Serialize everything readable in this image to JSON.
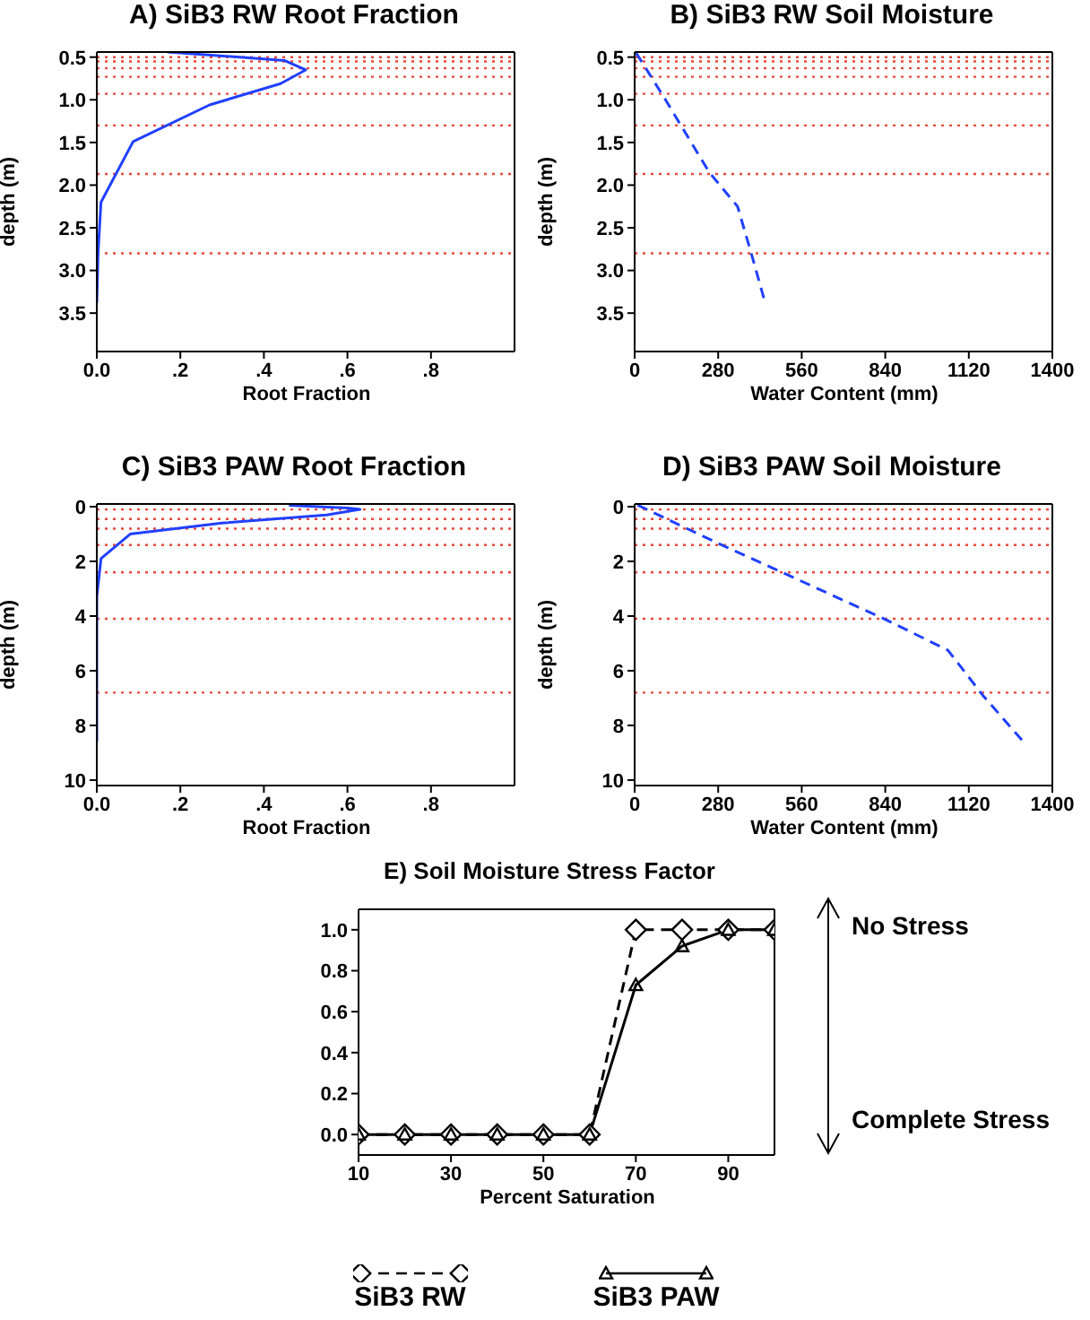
{
  "chart_data": [
    {
      "type": "line",
      "title": "A) SiB3 RW Root Fraction",
      "xlabel": "Root Fraction",
      "ylabel": "depth (m)",
      "xlim": [
        0,
        1
      ],
      "xticks": [
        {
          "value": 0,
          "label": "0.0"
        },
        {
          "value": 0.2,
          "label": ".2"
        },
        {
          "value": 0.4,
          "label": ".4"
        },
        {
          "value": 0.6,
          "label": ".6"
        },
        {
          "value": 0.8,
          "label": ".8"
        }
      ],
      "ylim": [
        3.95,
        0.44
      ],
      "yticks": [
        0.5,
        {
          "value": 1,
          "label": "1.0"
        },
        1.5,
        {
          "value": 2,
          "label": "2.0"
        },
        2.5,
        {
          "value": 3,
          "label": "3.0"
        },
        3.5
      ],
      "grid": false,
      "legend": false,
      "marker": "none",
      "line_style": "solid",
      "series": [
        {
          "color": "#2040ff",
          "x": [
            0.17,
            0.45,
            0.5,
            0.44,
            0.27,
            0.087,
            0.01,
            0.003,
            0
          ],
          "values": [
            0.44,
            0.54,
            0.65,
            0.81,
            1.06,
            1.49,
            2.2,
            2.8,
            3.38
          ]
        }
      ],
      "ref_lines": [
        {
          "axis": "y",
          "value": 0.5,
          "color": "#e8483c",
          "line_style": "dotted"
        },
        {
          "axis": "y",
          "value": 0.55,
          "color": "#e8483c",
          "line_style": "dotted"
        },
        {
          "axis": "y",
          "value": 0.63,
          "color": "#e8483c",
          "line_style": "dotted"
        },
        {
          "axis": "y",
          "value": 0.73,
          "color": "#e8483c",
          "line_style": "dotted"
        },
        {
          "axis": "y",
          "value": 0.93,
          "color": "#e8483c",
          "line_style": "dotted"
        },
        {
          "axis": "y",
          "value": 1.3,
          "color": "#e8483c",
          "line_style": "dotted"
        },
        {
          "axis": "y",
          "value": 1.87,
          "color": "#e8483c",
          "line_style": "dotted"
        },
        {
          "axis": "y",
          "value": 2.8,
          "color": "#e8483c",
          "line_style": "dotted"
        }
      ]
    },
    {
      "type": "line",
      "title": "B) SiB3 RW Soil Moisture",
      "xlabel": "Water Content (mm)",
      "ylabel": "depth (m)",
      "xlim": [
        0,
        1400
      ],
      "xticks": [
        0,
        280,
        560,
        840,
        1120,
        1400
      ],
      "ylim": [
        3.95,
        0.44
      ],
      "yticks": [
        0.5,
        {
          "value": 1,
          "label": "1.0"
        },
        1.5,
        {
          "value": 2,
          "label": "2.0"
        },
        2.5,
        {
          "value": 3,
          "label": "3.0"
        },
        3.5
      ],
      "grid": false,
      "legend": false,
      "marker": "none",
      "line_style": "dashed",
      "series": [
        {
          "color": "#2040ff",
          "x": [
            5,
            100,
            250,
            345,
            395,
            435
          ],
          "values": [
            0.45,
            0.98,
            1.85,
            2.25,
            2.85,
            3.35
          ]
        }
      ],
      "ref_lines": [
        {
          "axis": "y",
          "value": 0.5,
          "color": "#e8483c",
          "line_style": "dotted"
        },
        {
          "axis": "y",
          "value": 0.55,
          "color": "#e8483c",
          "line_style": "dotted"
        },
        {
          "axis": "y",
          "value": 0.63,
          "color": "#e8483c",
          "line_style": "dotted"
        },
        {
          "axis": "y",
          "value": 0.73,
          "color": "#e8483c",
          "line_style": "dotted"
        },
        {
          "axis": "y",
          "value": 0.93,
          "color": "#e8483c",
          "line_style": "dotted"
        },
        {
          "axis": "y",
          "value": 1.3,
          "color": "#e8483c",
          "line_style": "dotted"
        },
        {
          "axis": "y",
          "value": 1.87,
          "color": "#e8483c",
          "line_style": "dotted"
        },
        {
          "axis": "y",
          "value": 2.8,
          "color": "#e8483c",
          "line_style": "dotted"
        }
      ]
    },
    {
      "type": "line",
      "title": "C) SiB3 PAW Root Fraction",
      "xlabel": "Root Fraction",
      "ylabel": "depth (m)",
      "xlim": [
        0,
        1
      ],
      "xticks": [
        {
          "value": 0,
          "label": "0.0"
        },
        {
          "value": 0.2,
          "label": ".2"
        },
        {
          "value": 0.4,
          "label": ".4"
        },
        {
          "value": 0.6,
          "label": ".6"
        },
        {
          "value": 0.8,
          "label": ".8"
        }
      ],
      "ylim": [
        10.2,
        -0.1
      ],
      "yticks": [
        0,
        2,
        4,
        6,
        8,
        10
      ],
      "grid": false,
      "legend": false,
      "marker": "none",
      "line_style": "solid",
      "series": [
        {
          "color": "#2040ff",
          "x": [
            0.46,
            0.6,
            0.63,
            0.55,
            0.3,
            0.08,
            0.01,
            0,
            0
          ],
          "values": [
            -0.05,
            0.05,
            0.1,
            0.3,
            0.6,
            1,
            1.9,
            3.3,
            8.6
          ]
        }
      ],
      "ref_lines": [
        {
          "axis": "y",
          "value": 0.1,
          "color": "#e8483c",
          "line_style": "dotted"
        },
        {
          "axis": "y",
          "value": 0.45,
          "color": "#e8483c",
          "line_style": "dotted"
        },
        {
          "axis": "y",
          "value": 0.8,
          "color": "#e8483c",
          "line_style": "dotted"
        },
        {
          "axis": "y",
          "value": 1.4,
          "color": "#e8483c",
          "line_style": "dotted"
        },
        {
          "axis": "y",
          "value": 2.4,
          "color": "#e8483c",
          "line_style": "dotted"
        },
        {
          "axis": "y",
          "value": 4.1,
          "color": "#e8483c",
          "line_style": "dotted"
        },
        {
          "axis": "y",
          "value": 6.8,
          "color": "#e8483c",
          "line_style": "dotted"
        }
      ]
    },
    {
      "type": "line",
      "title": "D) SiB3 PAW Soil Moisture",
      "xlabel": "Water Content (mm)",
      "ylabel": "depth (m)",
      "xlim": [
        0,
        1400
      ],
      "xticks": [
        0,
        280,
        560,
        840,
        1120,
        1400
      ],
      "ylim": [
        10.2,
        -0.1
      ],
      "yticks": [
        0,
        2,
        4,
        6,
        8,
        10
      ],
      "grid": false,
      "legend": false,
      "marker": "none",
      "line_style": "dashed",
      "series": [
        {
          "color": "#2040ff",
          "x": [
            10,
            272,
            836,
            1050,
            1167,
            1303
          ],
          "values": [
            -0.06,
            1.3,
            4.1,
            5.25,
            6.9,
            8.6
          ]
        }
      ],
      "ref_lines": [
        {
          "axis": "y",
          "value": 0.1,
          "color": "#e8483c",
          "line_style": "dotted"
        },
        {
          "axis": "y",
          "value": 0.45,
          "color": "#e8483c",
          "line_style": "dotted"
        },
        {
          "axis": "y",
          "value": 0.8,
          "color": "#e8483c",
          "line_style": "dotted"
        },
        {
          "axis": "y",
          "value": 1.4,
          "color": "#e8483c",
          "line_style": "dotted"
        },
        {
          "axis": "y",
          "value": 2.4,
          "color": "#e8483c",
          "line_style": "dotted"
        },
        {
          "axis": "y",
          "value": 4.1,
          "color": "#e8483c",
          "line_style": "dotted"
        },
        {
          "axis": "y",
          "value": 6.8,
          "color": "#e8483c",
          "line_style": "dotted"
        }
      ]
    },
    {
      "type": "line",
      "title": "E) Soil Moisture Stress Factor",
      "xlabel": "Percent Saturation",
      "x": [
        10,
        20,
        30,
        40,
        50,
        60,
        70,
        80,
        90,
        100
      ],
      "xlim": [
        10,
        100
      ],
      "xticks": [
        10,
        30,
        50,
        70,
        90
      ],
      "ylim": [
        -0.1,
        1.1
      ],
      "yticks": [
        {
          "value": 0,
          "label": "0.0"
        },
        {
          "value": 0.2,
          "label": "0.2"
        },
        {
          "value": 0.4,
          "label": "0.4"
        },
        {
          "value": 0.6,
          "label": "0.6"
        },
        {
          "value": 0.8,
          "label": "0.8"
        },
        {
          "value": 1,
          "label": "1.0"
        }
      ],
      "grid": false,
      "legend": "bottom",
      "series": [
        {
          "name": "SiB3 RW",
          "color": "#000000",
          "marker": "diamond",
          "line_style": "dashed",
          "values": [
            0,
            0,
            0,
            0,
            0,
            0,
            1,
            1,
            1,
            1
          ]
        },
        {
          "name": "SiB3 PAW",
          "color": "#000000",
          "marker": "triangle",
          "line_style": "solid",
          "values": [
            0,
            0,
            0,
            0,
            0,
            0,
            0.73,
            0.92,
            1,
            1
          ]
        }
      ],
      "annotations": [
        "No Stress",
        "Complete Stress"
      ]
    }
  ]
}
